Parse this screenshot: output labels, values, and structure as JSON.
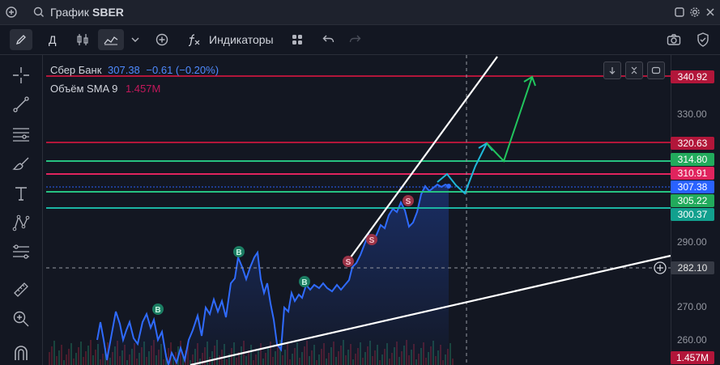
{
  "titlebar": {
    "title_prefix": "График",
    "symbol": "SBER"
  },
  "toolbar": {
    "interval": "Д",
    "indicators_label": "Индикаторы"
  },
  "legend": {
    "name": "Сбер Банк",
    "price": "307.38",
    "change": "−0.61 (−0.20%)",
    "volume_label": "Объём SMA 9",
    "volume_value": "1.457M"
  },
  "price_axis": {
    "ticks": [
      "330.00",
      "290.00",
      "270.00",
      "260.00"
    ],
    "labels": {
      "l340": "340.92",
      "l320": "320.63",
      "l314": "314.80",
      "l310": "310.91",
      "l307": "307.38",
      "l305": "305.22",
      "l300": "300.37",
      "cross": "282.10",
      "vol": "1.457M"
    }
  },
  "signals": [
    "B",
    "B",
    "B",
    "S",
    "S",
    "S"
  ],
  "colors": {
    "background": "#131722",
    "price_line": "#2962ff",
    "red_level": "#c2185b",
    "green_level": "#22ab94",
    "projection_up": "#26a69a"
  }
}
